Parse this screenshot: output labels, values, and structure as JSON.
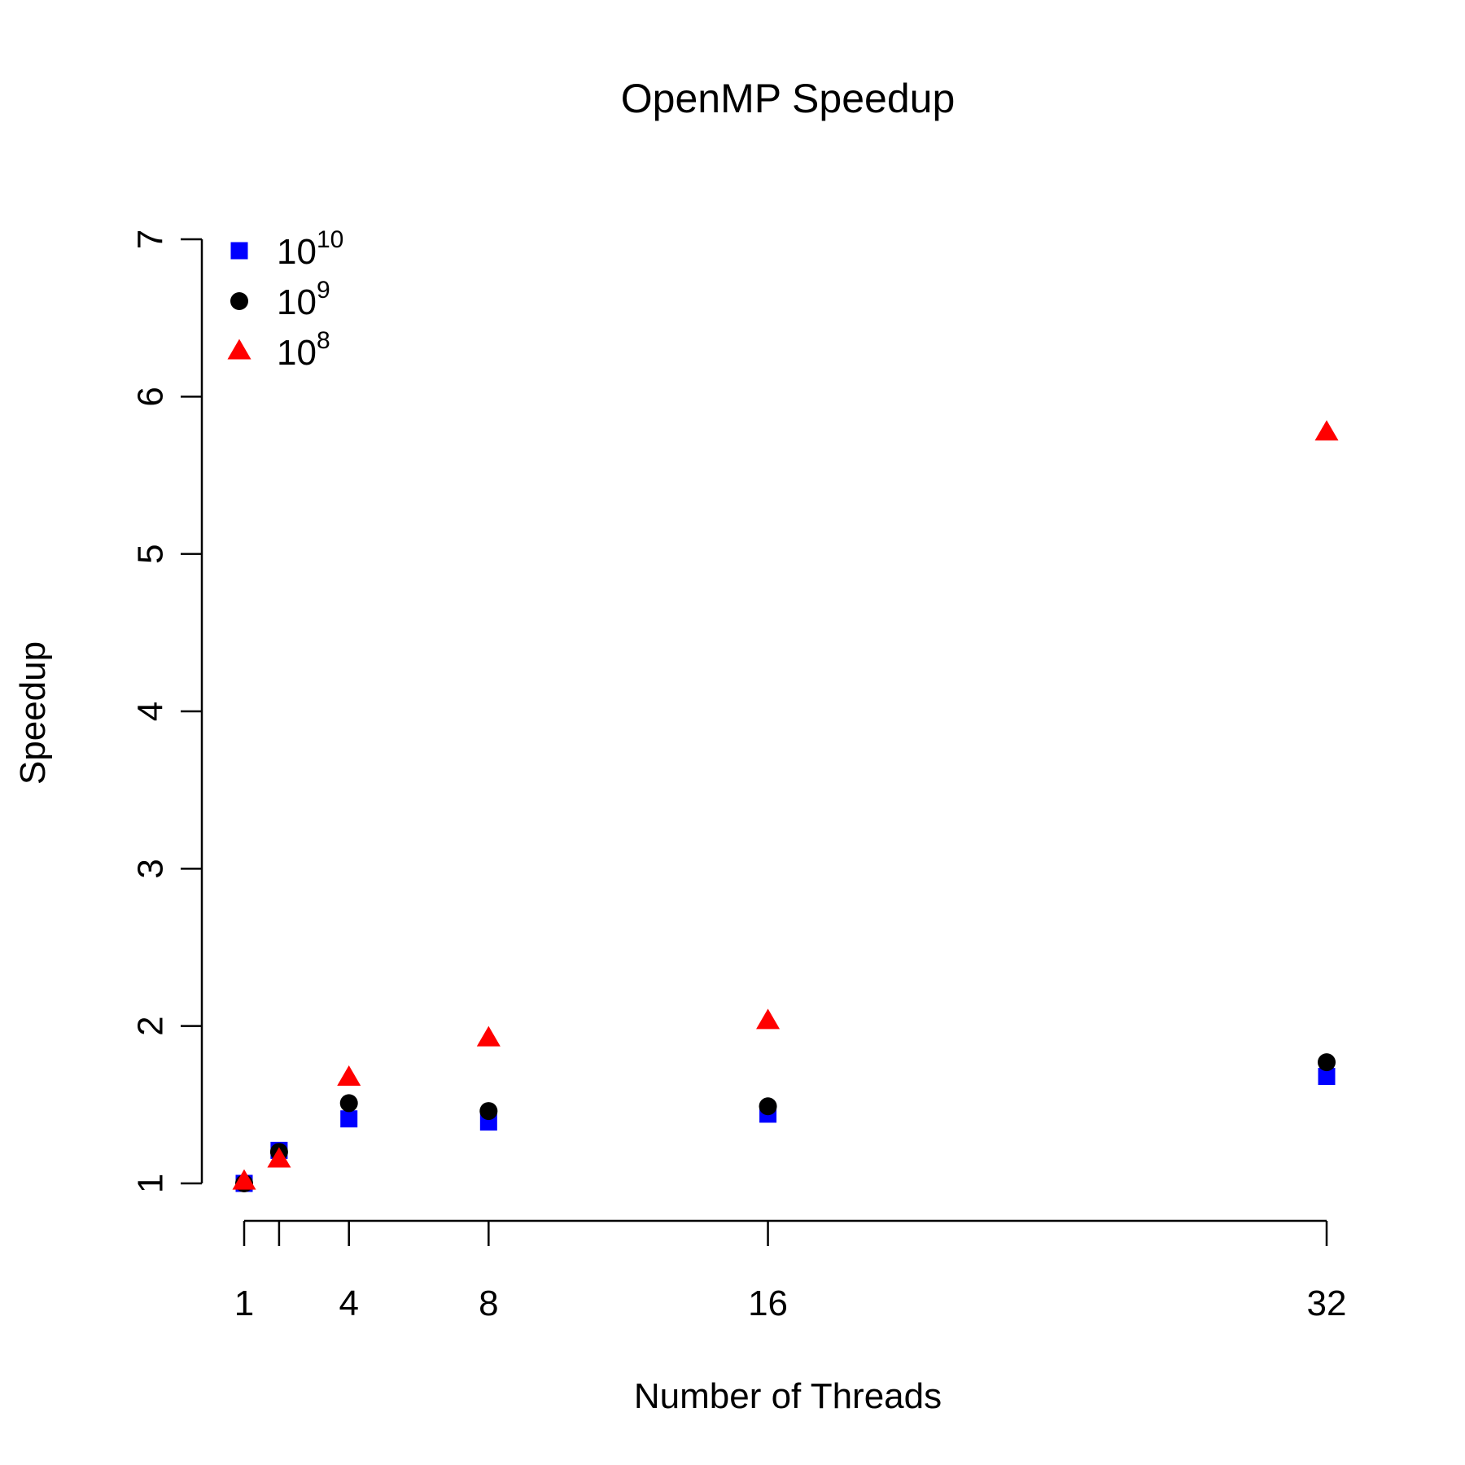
{
  "chart_data": {
    "type": "scatter",
    "title": "OpenMP Speedup",
    "xlabel": "Number of Threads",
    "ylabel": "Speedup",
    "x": [
      1,
      2,
      4,
      8,
      16,
      32
    ],
    "xticks": [
      1,
      2,
      4,
      8,
      16,
      32
    ],
    "xtick_labels": [
      "1",
      "",
      "4",
      "8",
      "16",
      "32"
    ],
    "xlim": [
      1,
      32
    ],
    "yticks": [
      1,
      2,
      3,
      4,
      5,
      6,
      7
    ],
    "ytick_labels": [
      "1",
      "2",
      "3",
      "4",
      "5",
      "6",
      "7"
    ],
    "ylim": [
      1,
      7
    ],
    "grid": false,
    "legend_position": "top-left",
    "series": [
      {
        "name_base": "10",
        "name_exp": "10",
        "marker": "square",
        "color": "#0000ff",
        "values": [
          1.0,
          1.21,
          1.41,
          1.39,
          1.44,
          1.68
        ]
      },
      {
        "name_base": "10",
        "name_exp": "9",
        "marker": "circle",
        "color": "#000000",
        "values": [
          1.0,
          1.2,
          1.51,
          1.46,
          1.49,
          1.77
        ]
      },
      {
        "name_base": "10",
        "name_exp": "8",
        "marker": "triangle",
        "color": "#ff0000",
        "values": [
          1.01,
          1.15,
          1.67,
          1.92,
          2.03,
          5.77
        ]
      }
    ]
  }
}
